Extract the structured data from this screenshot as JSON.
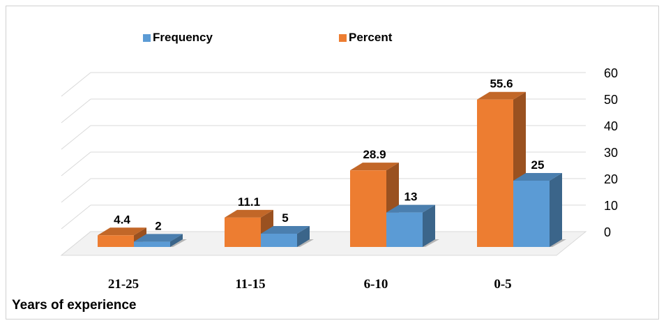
{
  "chart_data": {
    "type": "bar",
    "categories": [
      "21-25",
      "11-15",
      "6-10",
      "0-5"
    ],
    "series": [
      {
        "name": "Frequency",
        "values": [
          2,
          5,
          13,
          25
        ],
        "color": "#5b9bd5",
        "labels": [
          "2",
          "5",
          "13",
          "25"
        ]
      },
      {
        "name": "Percent",
        "values": [
          4.4,
          11.1,
          28.9,
          55.6
        ],
        "color": "#ed7d31",
        "labels": [
          "4.4",
          "11.1",
          "28.9",
          "55.6"
        ]
      }
    ],
    "xlabel": "Years of experience",
    "ylabel": "",
    "ylim": [
      0,
      60
    ],
    "yticks": [
      "0",
      "10",
      "20",
      "30",
      "40",
      "50",
      "60"
    ],
    "grid": true,
    "legend_position": "top",
    "style": "3d-clustered-column"
  }
}
